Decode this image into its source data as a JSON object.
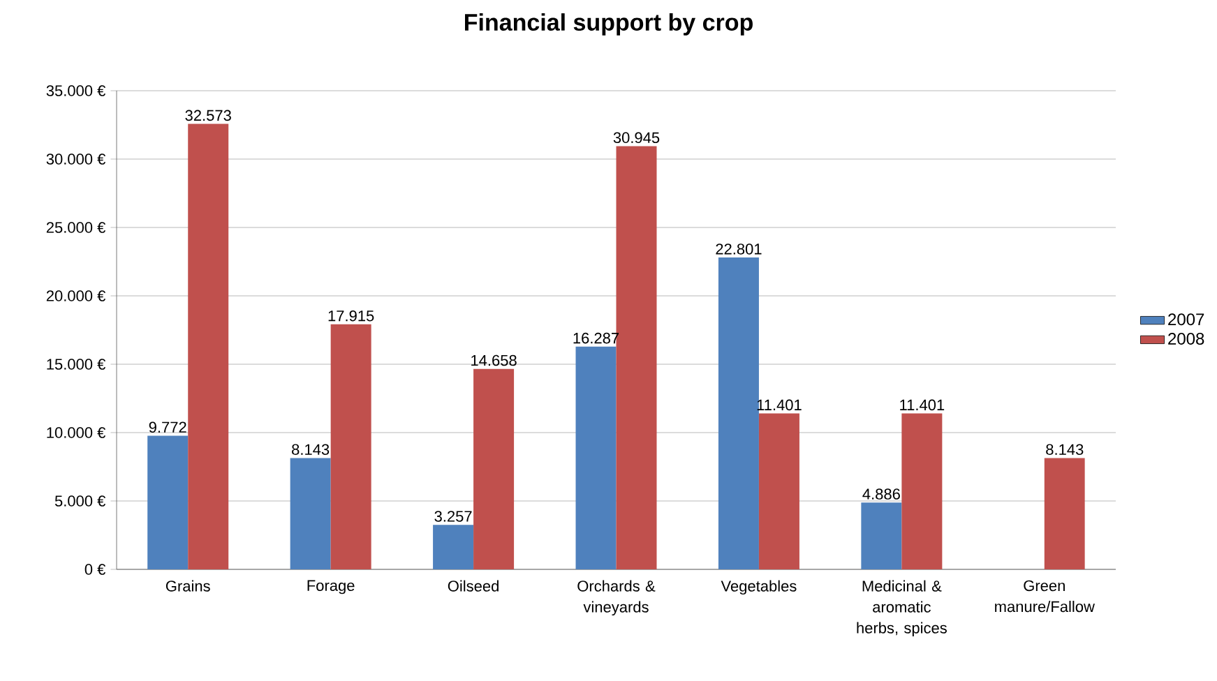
{
  "chart_data": {
    "type": "bar",
    "title": "Financial support by crop",
    "categories": [
      "Grains",
      "Forage",
      "Oilseed",
      "Orchards & vineyards",
      "Vegetables",
      "Medicinal & aromatic herbs, spices",
      "Green manure/Fallow"
    ],
    "series": [
      {
        "name": "2007",
        "color": "#4f81bd",
        "values": [
          9772,
          8143,
          3257,
          16287,
          22801,
          4886,
          null
        ],
        "value_labels": [
          "9.772",
          "8.143",
          "3.257",
          "16.287",
          "22.801",
          "4.886",
          null
        ]
      },
      {
        "name": "2008",
        "color": "#c0504d",
        "values": [
          32573,
          17915,
          14658,
          30945,
          11401,
          11401,
          8143
        ],
        "value_labels": [
          "32.573",
          "17.915",
          "14.658",
          "30.945",
          "11.401",
          "11.401",
          "8.143"
        ]
      }
    ],
    "ylim": [
      0,
      35000
    ],
    "yticks": [
      {
        "value": 0,
        "label": "0 €"
      },
      {
        "value": 5000,
        "label": "5.000 €"
      },
      {
        "value": 10000,
        "label": "10.000 €"
      },
      {
        "value": 15000,
        "label": "15.000 €"
      },
      {
        "value": 20000,
        "label": "20.000 €"
      },
      {
        "value": 25000,
        "label": "25.000 €"
      },
      {
        "value": 30000,
        "label": "30.000 €"
      },
      {
        "value": 35000,
        "label": "35.000 €"
      }
    ],
    "grid": "y",
    "legend": "right"
  }
}
